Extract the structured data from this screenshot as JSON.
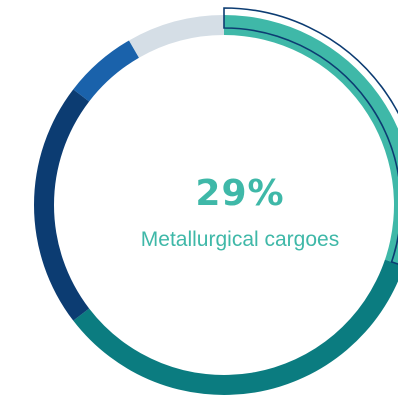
{
  "chart_data": {
    "type": "pie",
    "variant": "donut",
    "title": "",
    "highlight": {
      "value_label": "29%",
      "category": "Metallurgical cargoes",
      "color": "#3fb8a8"
    },
    "segments": [
      {
        "value": 29,
        "color": "#3fb8a8"
      },
      {
        "value": 33,
        "color": "#0b7c80"
      },
      {
        "value": 20,
        "color": "#0c3c72"
      },
      {
        "value": 6,
        "color": "#1a62ab"
      },
      {
        "value": 8,
        "color": "#d5dee6"
      }
    ],
    "outline_color": "#0c3c72"
  }
}
